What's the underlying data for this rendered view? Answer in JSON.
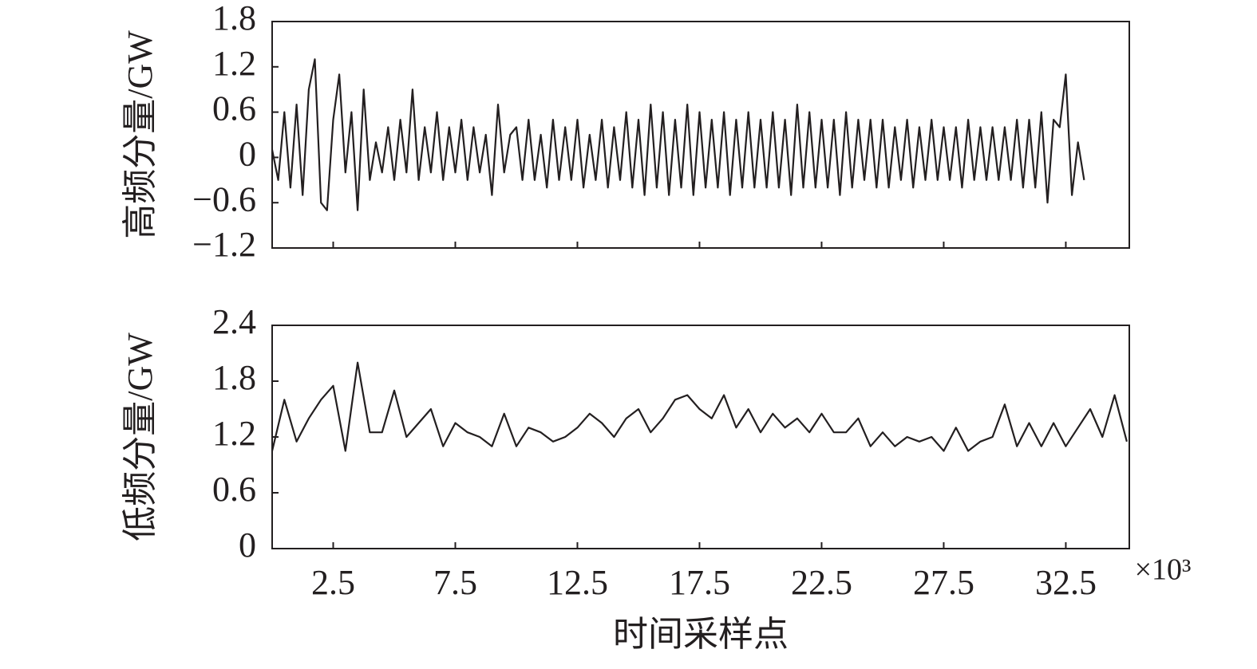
{
  "chart_data": [
    {
      "type": "line",
      "ylabel": "高频分量/GW",
      "color": "#231f20",
      "x": [
        0,
        0.25,
        0.5,
        0.75,
        1,
        1.25,
        1.5,
        1.75,
        2,
        2.25,
        2.5,
        2.75,
        3,
        3.25,
        3.5,
        3.75,
        4,
        4.25,
        4.5,
        4.75,
        5,
        5.25,
        5.5,
        5.75,
        6,
        6.25,
        6.5,
        6.75,
        7,
        7.25,
        7.5,
        7.75,
        8,
        8.25,
        8.5,
        8.75,
        9,
        9.25,
        9.5,
        9.75,
        10,
        10.25,
        10.5,
        10.75,
        11,
        11.25,
        11.5,
        11.75,
        12,
        12.25,
        12.5,
        12.75,
        13,
        13.25,
        13.5,
        13.75,
        14,
        14.25,
        14.5,
        14.75,
        15,
        15.25,
        15.5,
        15.75,
        16,
        16.25,
        16.5,
        16.75,
        17,
        17.25,
        17.5,
        17.75,
        18,
        18.25,
        18.5,
        18.75,
        19,
        19.25,
        19.5,
        19.75,
        20,
        20.25,
        20.5,
        20.75,
        21,
        21.25,
        21.5,
        21.75,
        22,
        22.25,
        22.5,
        22.75,
        23,
        23.25,
        23.5,
        23.75,
        24,
        24.25,
        24.5,
        24.75,
        25,
        25.25,
        25.5,
        25.75,
        26,
        26.25,
        26.5,
        26.75,
        27,
        27.25,
        27.5,
        27.75,
        28,
        28.25,
        28.5,
        28.75,
        29,
        29.25,
        29.5,
        29.75,
        30,
        30.25,
        30.5,
        30.75,
        31,
        31.25,
        31.5,
        31.75,
        32,
        32.25,
        32.5,
        32.75,
        33,
        33.25
      ],
      "values": [
        0.1,
        -0.3,
        0.6,
        -0.4,
        0.7,
        -0.5,
        0.9,
        1.3,
        -0.6,
        -0.7,
        0.5,
        1.1,
        -0.2,
        0.6,
        -0.7,
        0.9,
        -0.3,
        0.2,
        -0.2,
        0.4,
        -0.3,
        0.5,
        -0.2,
        0.9,
        -0.3,
        0.4,
        -0.2,
        0.6,
        -0.3,
        0.4,
        -0.2,
        0.5,
        -0.3,
        0.4,
        -0.2,
        0.3,
        -0.5,
        0.7,
        -0.2,
        0.3,
        0.4,
        -0.3,
        0.5,
        -0.3,
        0.3,
        -0.4,
        0.5,
        -0.3,
        0.4,
        -0.3,
        0.5,
        -0.4,
        0.3,
        -0.3,
        0.5,
        -0.4,
        0.4,
        -0.3,
        0.6,
        -0.4,
        0.5,
        -0.5,
        0.7,
        -0.4,
        0.6,
        -0.5,
        0.5,
        -0.4,
        0.7,
        -0.5,
        0.6,
        -0.4,
        0.5,
        -0.4,
        0.6,
        -0.5,
        0.5,
        -0.4,
        0.6,
        -0.4,
        0.5,
        -0.4,
        0.6,
        -0.4,
        0.5,
        -0.5,
        0.7,
        -0.4,
        0.6,
        -0.4,
        0.5,
        -0.4,
        0.5,
        -0.5,
        0.6,
        -0.4,
        0.5,
        -0.3,
        0.5,
        -0.4,
        0.5,
        -0.4,
        0.4,
        -0.3,
        0.5,
        -0.4,
        0.4,
        -0.3,
        0.5,
        -0.3,
        0.4,
        -0.3,
        0.4,
        -0.4,
        0.5,
        -0.3,
        0.4,
        -0.3,
        0.4,
        -0.3,
        0.4,
        -0.3,
        0.5,
        -0.4,
        0.5,
        -0.4,
        0.6,
        -0.6,
        0.5,
        0.4,
        1.1,
        -0.5,
        0.2,
        -0.3
      ],
      "xlim": [
        0,
        35.1
      ],
      "xticks": [
        2.5,
        7.5,
        12.5,
        17.5,
        22.5,
        27.5,
        32.5
      ],
      "ylim": [
        -1.2,
        1.8
      ],
      "yticks": [
        {
          "value": -1.2,
          "label": "−1.2"
        },
        {
          "value": -0.6,
          "label": "−0.6"
        },
        0,
        0.6,
        1.2,
        1.8
      ]
    },
    {
      "type": "line",
      "ylabel": "低频分量/GW",
      "xlabel": "时间采样点",
      "x_multiplier": "×10³",
      "color": "#231f20",
      "x": [
        0,
        0.5,
        1,
        1.5,
        2,
        2.5,
        3,
        3.5,
        4,
        4.5,
        5,
        5.5,
        6,
        6.5,
        7,
        7.5,
        8,
        8.5,
        9,
        9.5,
        10,
        10.5,
        11,
        11.5,
        12,
        12.5,
        13,
        13.5,
        14,
        14.5,
        15,
        15.5,
        16,
        16.5,
        17,
        17.5,
        18,
        18.5,
        19,
        19.5,
        20,
        20.5,
        21,
        21.5,
        22,
        22.5,
        23,
        23.5,
        24,
        24.5,
        25,
        25.5,
        26,
        26.5,
        27,
        27.5,
        28,
        28.5,
        29,
        29.5,
        30,
        30.5,
        31,
        31.5,
        32,
        32.5,
        33,
        33.5,
        34,
        34.5,
        35
      ],
      "values": [
        1.05,
        1.6,
        1.15,
        1.4,
        1.6,
        1.75,
        1.05,
        2.0,
        1.25,
        1.25,
        1.7,
        1.2,
        1.35,
        1.5,
        1.1,
        1.35,
        1.25,
        1.2,
        1.1,
        1.45,
        1.1,
        1.3,
        1.25,
        1.15,
        1.2,
        1.3,
        1.45,
        1.35,
        1.2,
        1.4,
        1.5,
        1.25,
        1.4,
        1.6,
        1.65,
        1.5,
        1.4,
        1.65,
        1.3,
        1.5,
        1.25,
        1.45,
        1.3,
        1.4,
        1.25,
        1.45,
        1.25,
        1.25,
        1.4,
        1.1,
        1.25,
        1.1,
        1.2,
        1.15,
        1.2,
        1.05,
        1.3,
        1.05,
        1.15,
        1.2,
        1.55,
        1.1,
        1.35,
        1.1,
        1.35,
        1.1,
        1.3,
        1.5,
        1.2,
        1.65,
        1.15
      ],
      "xlim": [
        0,
        35.1
      ],
      "xticks": [
        2.5,
        7.5,
        12.5,
        17.5,
        22.5,
        27.5,
        32.5
      ],
      "ylim": [
        0,
        2.4
      ],
      "yticks": [
        0,
        0.6,
        1.2,
        1.8,
        2.4
      ]
    }
  ]
}
